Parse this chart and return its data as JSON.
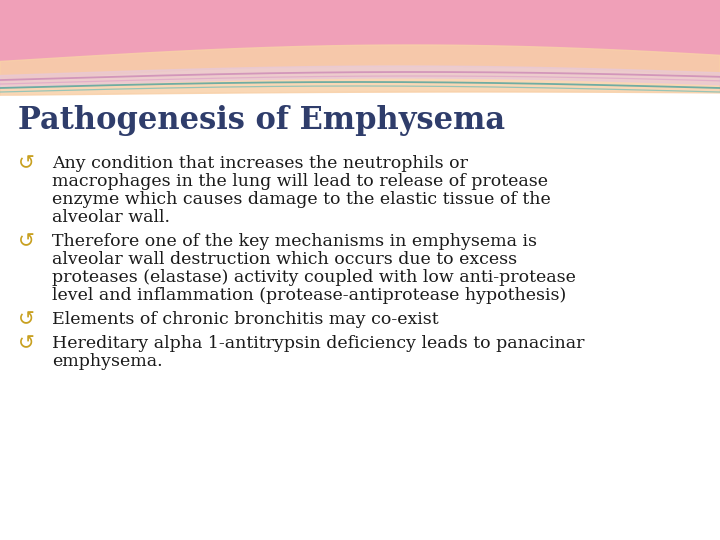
{
  "title": "Pathogenesis of Emphysema",
  "title_color": "#2F3D6B",
  "title_fontsize": 22,
  "background_color": "#FFFFFF",
  "bullet_color": "#C8A020",
  "text_color": "#1A1A1A",
  "bullets": [
    {
      "lines": [
        "Any condition that increases the neutrophils or",
        "macrophages in the lung will lead to release of protease",
        "enzyme which causes damage to the elastic tissue of the",
        "alveolar wall."
      ]
    },
    {
      "lines": [
        "Therefore one of the key mechanisms in emphysema is",
        "alveolar wall destruction which occurs due to excess",
        "proteases (elastase) activity coupled with low anti-protease",
        "level and inflammation (protease-antiprotease hypothesis)"
      ]
    },
    {
      "lines": [
        "Elements of chronic bronchitis may co-exist"
      ]
    },
    {
      "lines": [
        "Hereditary alpha 1-antitrypsin deficiency leads to panacinar",
        "emphysema."
      ]
    }
  ],
  "wave_pink_color": "#F0A0B8",
  "wave_peach_color": "#F8D0A8",
  "wave_lavender_color": "#E8C8D8",
  "wave_teal_color": "#70B8B0",
  "wave_line_pink": "#D090B8",
  "wave_line_teal": "#60A8A0"
}
